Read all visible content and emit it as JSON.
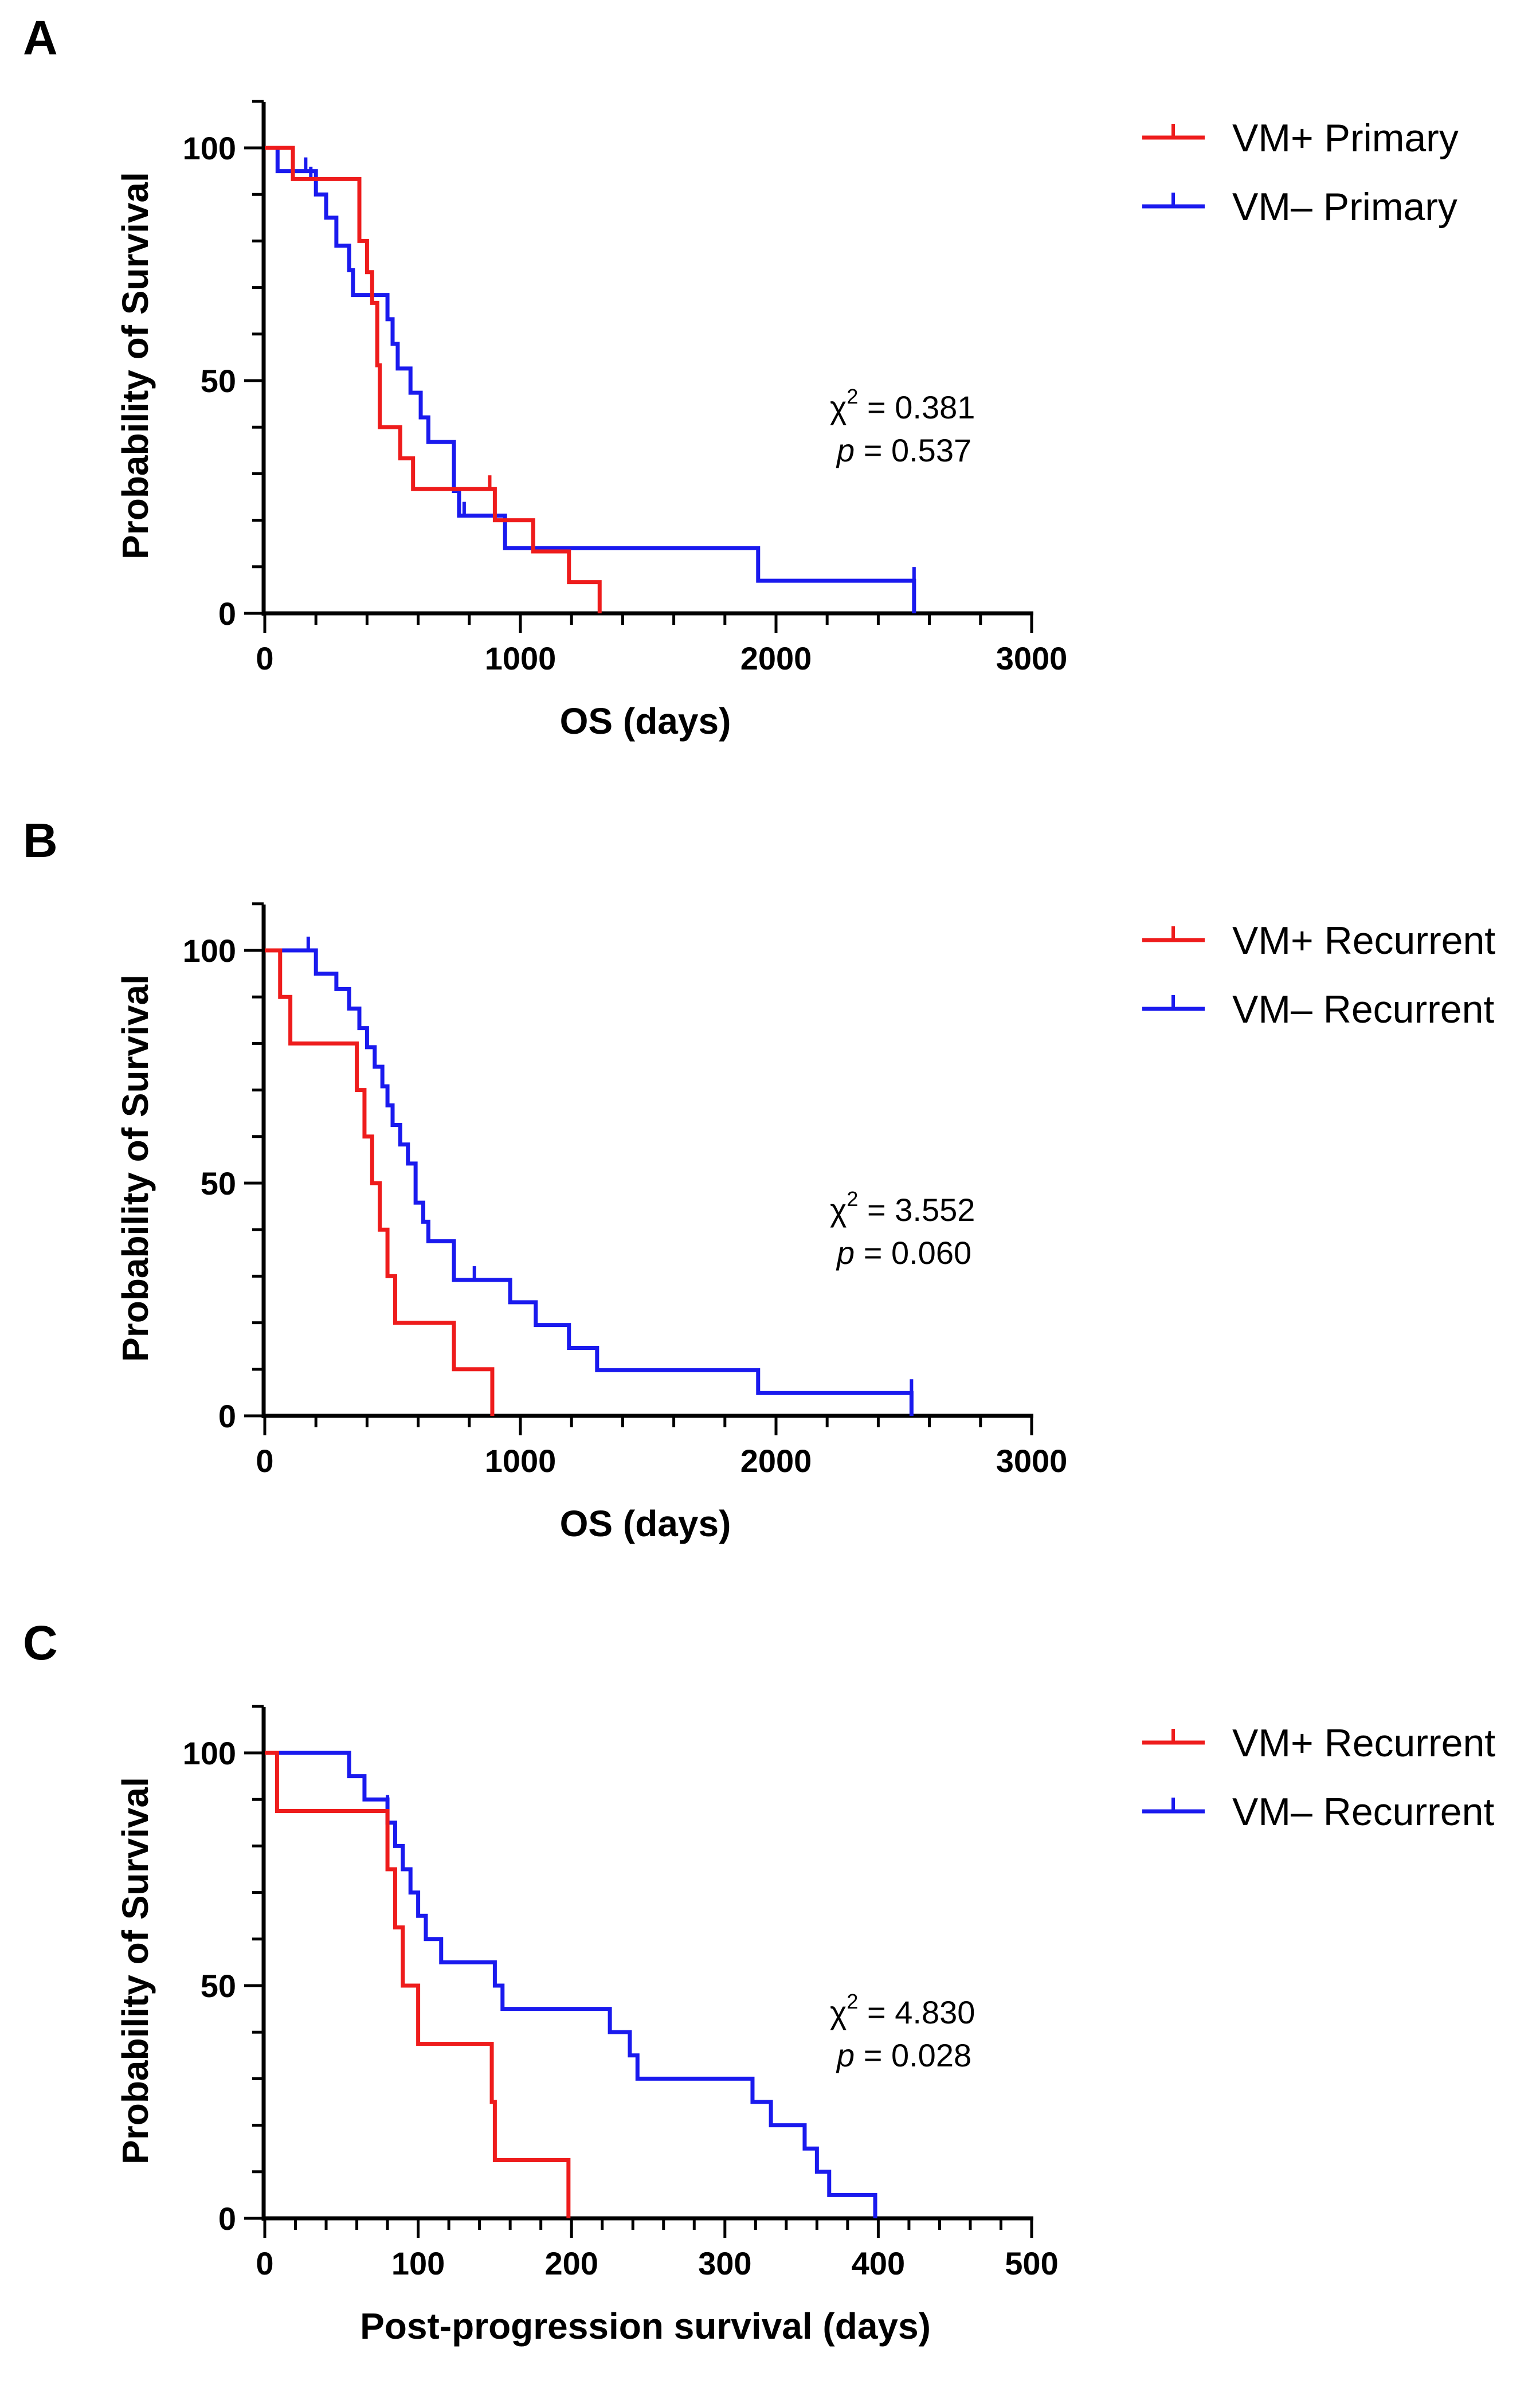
{
  "chart_data": [
    {
      "panel": "A",
      "type": "line",
      "subtype": "kaplan-meier",
      "xlabel": "OS (days)",
      "ylabel": "Probability of Survival",
      "xlim": [
        0,
        3000
      ],
      "ylim": [
        0,
        110
      ],
      "xticks": [
        "0",
        "1000",
        "2000",
        "3000"
      ],
      "yticks": [
        "0",
        "50",
        "100"
      ],
      "series": [
        {
          "name": "VM+ Primary",
          "color": "#ee1c1c",
          "steps": [
            [
              0,
              100
            ],
            [
              110,
              93.3
            ],
            [
              330,
              93.3
            ],
            [
              370,
              80
            ],
            [
              400,
              73.3
            ],
            [
              420,
              66.7
            ],
            [
              440,
              53.3
            ],
            [
              450,
              40
            ],
            [
              500,
              40
            ],
            [
              530,
              33.3
            ],
            [
              580,
              26.7
            ],
            [
              730,
              26.7
            ],
            [
              880,
              26.7
            ],
            [
              900,
              20
            ],
            [
              1030,
              20
            ],
            [
              1050,
              13.3
            ],
            [
              1180,
              13.3
            ],
            [
              1190,
              6.7
            ],
            [
              1300,
              6.7
            ],
            [
              1310,
              0
            ]
          ],
          "censors": [
            [
              880,
              26.7
            ]
          ]
        },
        {
          "name": "VM– Primary",
          "color": "#1a1aee",
          "steps": [
            [
              0,
              100
            ],
            [
              50,
              95
            ],
            [
              160,
              95
            ],
            [
              200,
              90
            ],
            [
              240,
              85
            ],
            [
              280,
              79
            ],
            [
              330,
              73.7
            ],
            [
              345,
              68.4
            ],
            [
              460,
              68.4
            ],
            [
              480,
              63.2
            ],
            [
              500,
              57.9
            ],
            [
              520,
              52.6
            ],
            [
              570,
              47.4
            ],
            [
              610,
              42.1
            ],
            [
              640,
              36.8
            ],
            [
              720,
              36.8
            ],
            [
              740,
              26.3
            ],
            [
              760,
              21
            ],
            [
              900,
              21
            ],
            [
              940,
              14
            ],
            [
              1040,
              14
            ],
            [
              1920,
              14
            ],
            [
              1930,
              7
            ],
            [
              2530,
              7
            ],
            [
              2540,
              0
            ]
          ],
          "censors": [
            [
              160,
              95
            ],
            [
              180,
              93
            ],
            [
              780,
              21
            ],
            [
              2540,
              7
            ]
          ]
        }
      ],
      "stats": {
        "chi_label": "χ",
        "chi_sup": "2",
        "chi_value": " = 0.381",
        "p_label": "p",
        "p_value": " = 0.537"
      }
    },
    {
      "panel": "B",
      "type": "line",
      "subtype": "kaplan-meier",
      "xlabel": "OS (days)",
      "ylabel": "Probability of Survival",
      "xlim": [
        0,
        3000
      ],
      "ylim": [
        0,
        110
      ],
      "xticks": [
        "0",
        "1000",
        "2000",
        "3000"
      ],
      "yticks": [
        "0",
        "50",
        "100"
      ],
      "series": [
        {
          "name": "VM+ Recurrent",
          "color": "#ee1c1c",
          "steps": [
            [
              0,
              100
            ],
            [
              60,
              90
            ],
            [
              100,
              80
            ],
            [
              340,
              80
            ],
            [
              360,
              70
            ],
            [
              390,
              60
            ],
            [
              420,
              50
            ],
            [
              450,
              40
            ],
            [
              480,
              30
            ],
            [
              510,
              20
            ],
            [
              720,
              20
            ],
            [
              740,
              10
            ],
            [
              880,
              10
            ],
            [
              890,
              0
            ]
          ],
          "censors": []
        },
        {
          "name": "VM– Recurrent",
          "color": "#1a1aee",
          "steps": [
            [
              0,
              100
            ],
            [
              180,
              100
            ],
            [
              200,
              95
            ],
            [
              280,
              91.7
            ],
            [
              330,
              87.5
            ],
            [
              370,
              83.3
            ],
            [
              400,
              79.2
            ],
            [
              430,
              75
            ],
            [
              460,
              70.8
            ],
            [
              480,
              66.7
            ],
            [
              500,
              62.5
            ],
            [
              530,
              58.3
            ],
            [
              560,
              54.2
            ],
            [
              590,
              45.8
            ],
            [
              620,
              41.7
            ],
            [
              640,
              37.5
            ],
            [
              720,
              37.5
            ],
            [
              740,
              29.2
            ],
            [
              940,
              29.2
            ],
            [
              960,
              24.4
            ],
            [
              1060,
              19.5
            ],
            [
              1190,
              14.6
            ],
            [
              1300,
              9.8
            ],
            [
              1920,
              9.8
            ],
            [
              1930,
              4.9
            ],
            [
              2520,
              4.9
            ],
            [
              2530,
              0
            ]
          ],
          "censors": [
            [
              170,
              100
            ],
            [
              820,
              29.2
            ],
            [
              2530,
              4.9
            ]
          ]
        }
      ],
      "stats": {
        "chi_label": "χ",
        "chi_sup": "2",
        "chi_value": " = 3.552",
        "p_label": "p",
        "p_value": " = 0.060"
      }
    },
    {
      "panel": "C",
      "type": "line",
      "subtype": "kaplan-meier",
      "xlabel": "Post-progression survival (days)",
      "ylabel": "Probability of Survival",
      "xlim": [
        0,
        500
      ],
      "ylim": [
        0,
        110
      ],
      "xticks": [
        "0",
        "100",
        "200",
        "300",
        "400",
        "500"
      ],
      "yticks": [
        "0",
        "50",
        "100"
      ],
      "series": [
        {
          "name": "VM+ Recurrent",
          "color": "#ee1c1c",
          "steps": [
            [
              0,
              100
            ],
            [
              8,
              87.5
            ],
            [
              75,
              87.5
            ],
            [
              80,
              75
            ],
            [
              85,
              62.5
            ],
            [
              90,
              50
            ],
            [
              100,
              37.5
            ],
            [
              143,
              37.5
            ],
            [
              148,
              25
            ],
            [
              150,
              12.5
            ],
            [
              196,
              12.5
            ],
            [
              198,
              0
            ]
          ],
          "censors": []
        },
        {
          "name": "VM– Recurrent",
          "color": "#1a1aee",
          "steps": [
            [
              0,
              100
            ],
            [
              45,
              100
            ],
            [
              55,
              95
            ],
            [
              65,
              90
            ],
            [
              80,
              85
            ],
            [
              85,
              80
            ],
            [
              90,
              75
            ],
            [
              95,
              70
            ],
            [
              100,
              65
            ],
            [
              105,
              60
            ],
            [
              115,
              55
            ],
            [
              147,
              55
            ],
            [
              150,
              50
            ],
            [
              155,
              45
            ],
            [
              218,
              45
            ],
            [
              225,
              40
            ],
            [
              238,
              35
            ],
            [
              243,
              30
            ],
            [
              308,
              30
            ],
            [
              318,
              25
            ],
            [
              330,
              20
            ],
            [
              352,
              15
            ],
            [
              360,
              10
            ],
            [
              368,
              5
            ],
            [
              395,
              5
            ],
            [
              398,
              0
            ]
          ],
          "censors": [
            [
              80,
              88
            ]
          ]
        }
      ],
      "stats": {
        "chi_label": "χ",
        "chi_sup": "2",
        "chi_value": " = 4.830",
        "p_label": "p",
        "p_value": " = 0.028"
      }
    }
  ]
}
